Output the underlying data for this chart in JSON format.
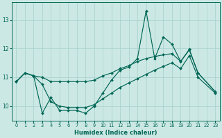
{
  "xlabel": "Humidex (Indice chaleur)",
  "xlim": [
    -0.5,
    23.5
  ],
  "ylim": [
    9.5,
    13.6
  ],
  "yticks": [
    10,
    11,
    12,
    13
  ],
  "xticks": [
    0,
    1,
    2,
    3,
    4,
    5,
    6,
    7,
    8,
    9,
    10,
    11,
    12,
    13,
    14,
    15,
    16,
    17,
    18,
    19,
    20,
    21,
    22,
    23
  ],
  "bg_color": "#cce8e4",
  "grid_color": "#aad4d0",
  "line_color": "#006655",
  "series": [
    {
      "x": [
        0,
        1,
        2,
        3,
        4,
        5,
        6,
        7,
        8,
        9,
        10,
        11,
        12,
        13,
        14,
        15,
        16,
        17,
        18,
        19,
        20,
        21,
        23
      ],
      "y": [
        10.85,
        11.15,
        11.05,
        9.75,
        10.3,
        9.85,
        9.85,
        9.85,
        9.75,
        10.0,
        10.45,
        10.9,
        11.25,
        11.35,
        11.65,
        13.3,
        11.65,
        12.4,
        12.15,
        11.55,
        11.95,
        11.15,
        10.5
      ]
    },
    {
      "x": [
        0,
        1,
        2,
        3,
        4,
        5,
        6,
        7,
        8,
        9,
        10,
        11,
        12,
        13,
        14,
        15,
        16,
        17,
        18,
        19,
        20,
        21,
        23
      ],
      "y": [
        10.85,
        11.15,
        11.05,
        11.0,
        10.85,
        10.85,
        10.85,
        10.85,
        10.85,
        10.9,
        11.05,
        11.15,
        11.3,
        11.4,
        11.55,
        11.65,
        11.72,
        11.78,
        11.82,
        11.55,
        11.97,
        11.15,
        10.5
      ]
    },
    {
      "x": [
        0,
        1,
        2,
        3,
        4,
        5,
        6,
        7,
        8,
        9,
        10,
        11,
        12,
        13,
        14,
        15,
        16,
        17,
        18,
        19,
        20,
        21,
        23
      ],
      "y": [
        10.85,
        11.15,
        11.05,
        10.75,
        10.15,
        10.0,
        9.95,
        9.95,
        9.95,
        10.05,
        10.25,
        10.45,
        10.65,
        10.8,
        10.95,
        11.1,
        11.25,
        11.38,
        11.5,
        11.3,
        11.75,
        11.0,
        10.45
      ]
    }
  ]
}
